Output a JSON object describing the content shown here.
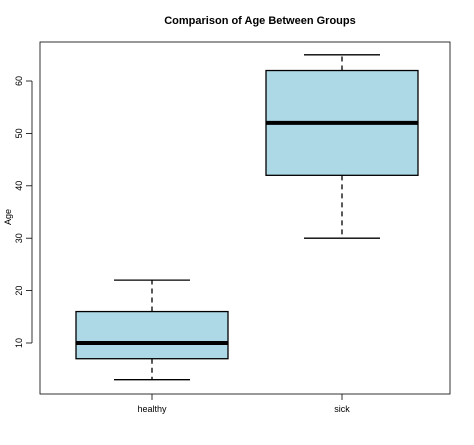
{
  "chart_data": {
    "type": "boxplot",
    "title": "Comparison of Age Between Groups",
    "xlabel": "",
    "ylabel": "Age",
    "ylim": [
      0,
      67
    ],
    "y_ticks": [
      10,
      20,
      30,
      40,
      50,
      60
    ],
    "categories": [
      "healthy",
      "sick"
    ],
    "boxes": [
      {
        "category": "healthy",
        "whisker_low": 3,
        "q1": 7,
        "median": 10,
        "q3": 16,
        "whisker_high": 22
      },
      {
        "category": "sick",
        "whisker_low": 30,
        "q1": 42,
        "median": 52,
        "q3": 62,
        "whisker_high": 65
      }
    ],
    "box_fill": "#add8e6",
    "grid": false,
    "legend": "none"
  }
}
